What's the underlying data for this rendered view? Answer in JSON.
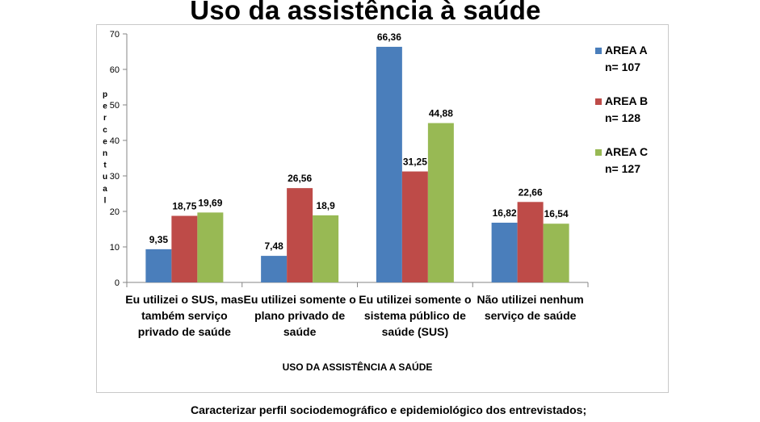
{
  "chart_data": {
    "type": "bar",
    "title": "Uso da assistência à saúde",
    "xlabel": "USO DA ASSISTÊNCIA A SAÚDE",
    "ylabel": "Percentual",
    "ylim": [
      0,
      70
    ],
    "yticks": [
      0,
      10,
      20,
      30,
      40,
      50,
      60,
      70
    ],
    "grid": false,
    "legend_position": "right",
    "categories": [
      [
        "Eu utilizei o SUS, mas",
        "também serviço",
        "privado de saúde"
      ],
      [
        "Eu utilizei somente o",
        "plano privado de",
        "saúde"
      ],
      [
        "Eu utilizei somente o",
        "sistema público de",
        "saúde (SUS)"
      ],
      [
        "Não utilizei nenhum",
        "serviço de saúde"
      ]
    ],
    "series": [
      {
        "name": "AREA A",
        "subtitle": "n= 107",
        "color": "#4a7ebb",
        "values": [
          9.35,
          7.48,
          66.36,
          16.82
        ],
        "labels": [
          "9,35",
          "7,48",
          "66,36",
          "16,82"
        ]
      },
      {
        "name": "AREA B",
        "subtitle": "n= 128",
        "color": "#be4b48",
        "values": [
          18.75,
          26.56,
          31.25,
          22.66
        ],
        "labels": [
          "18,75",
          "26,56",
          "31,25",
          "22,66"
        ]
      },
      {
        "name": "AREA C",
        "subtitle": "n= 127",
        "color": "#98b954",
        "values": [
          19.69,
          18.9,
          44.88,
          16.54
        ],
        "labels": [
          "19,69",
          "18,9",
          "44,88",
          "16,54"
        ]
      }
    ]
  },
  "footer_text": "Caracterizar perfil sociodemográfico e epidemiológico dos entrevistados;"
}
